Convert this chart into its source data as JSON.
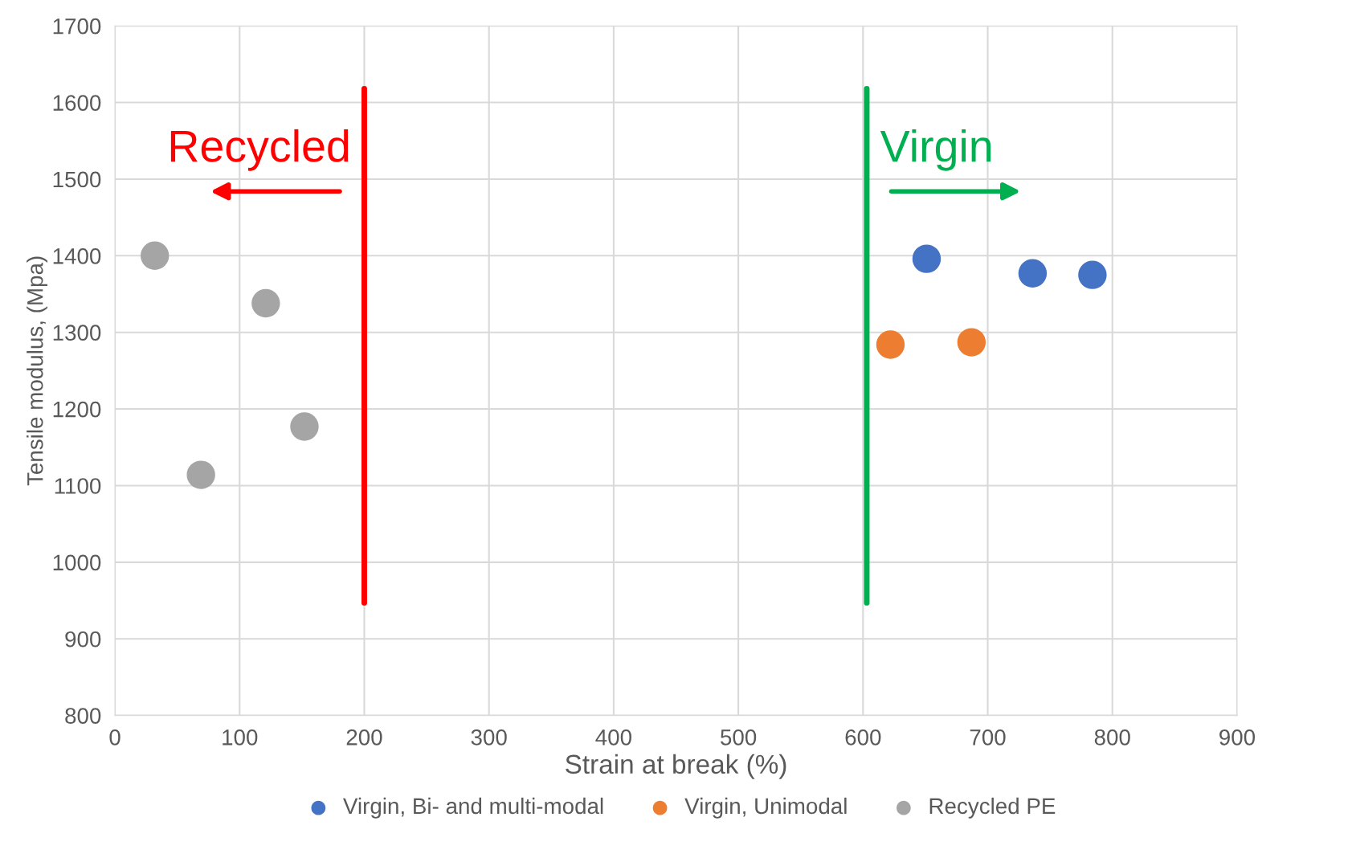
{
  "chart_data": {
    "type": "scatter",
    "xlabel": "Strain at break (%)",
    "ylabel": "Tensile modulus, (Mpa)",
    "xlim": [
      0,
      900
    ],
    "xticks": [
      0,
      100,
      200,
      300,
      400,
      500,
      600,
      700,
      800,
      900
    ],
    "ylim": [
      800,
      1700
    ],
    "yticks": [
      800,
      900,
      1000,
      1100,
      1200,
      1300,
      1400,
      1500,
      1600,
      1700
    ],
    "grid": true,
    "legend": "bottom",
    "marker": "circle",
    "series": [
      {
        "name": "Virgin, Bi- and multi-modal",
        "color": "#4472c4",
        "x": [
          651,
          736,
          784
        ],
        "values": [
          1396,
          1377,
          1375
        ]
      },
      {
        "name": "Virgin, Unimodal",
        "color": "#ed7d31",
        "x": [
          622,
          687
        ],
        "values": [
          1284,
          1287
        ]
      },
      {
        "name": "Recycled PE",
        "color": "#a5a5a5",
        "x": [
          32,
          69,
          121,
          152
        ],
        "values": [
          1400,
          1114,
          1338,
          1177
        ]
      },
      {
        "type": "line",
        "marker": "none",
        "color": "#ff0000",
        "x": [
          200,
          200
        ],
        "values": [
          947,
          1618
        ]
      },
      {
        "type": "line",
        "marker": "none",
        "color": "#00b050",
        "x": [
          603,
          603
        ],
        "values": [
          947,
          1618
        ]
      }
    ],
    "annotations": [
      "Recycled",
      "Virgin"
    ]
  }
}
